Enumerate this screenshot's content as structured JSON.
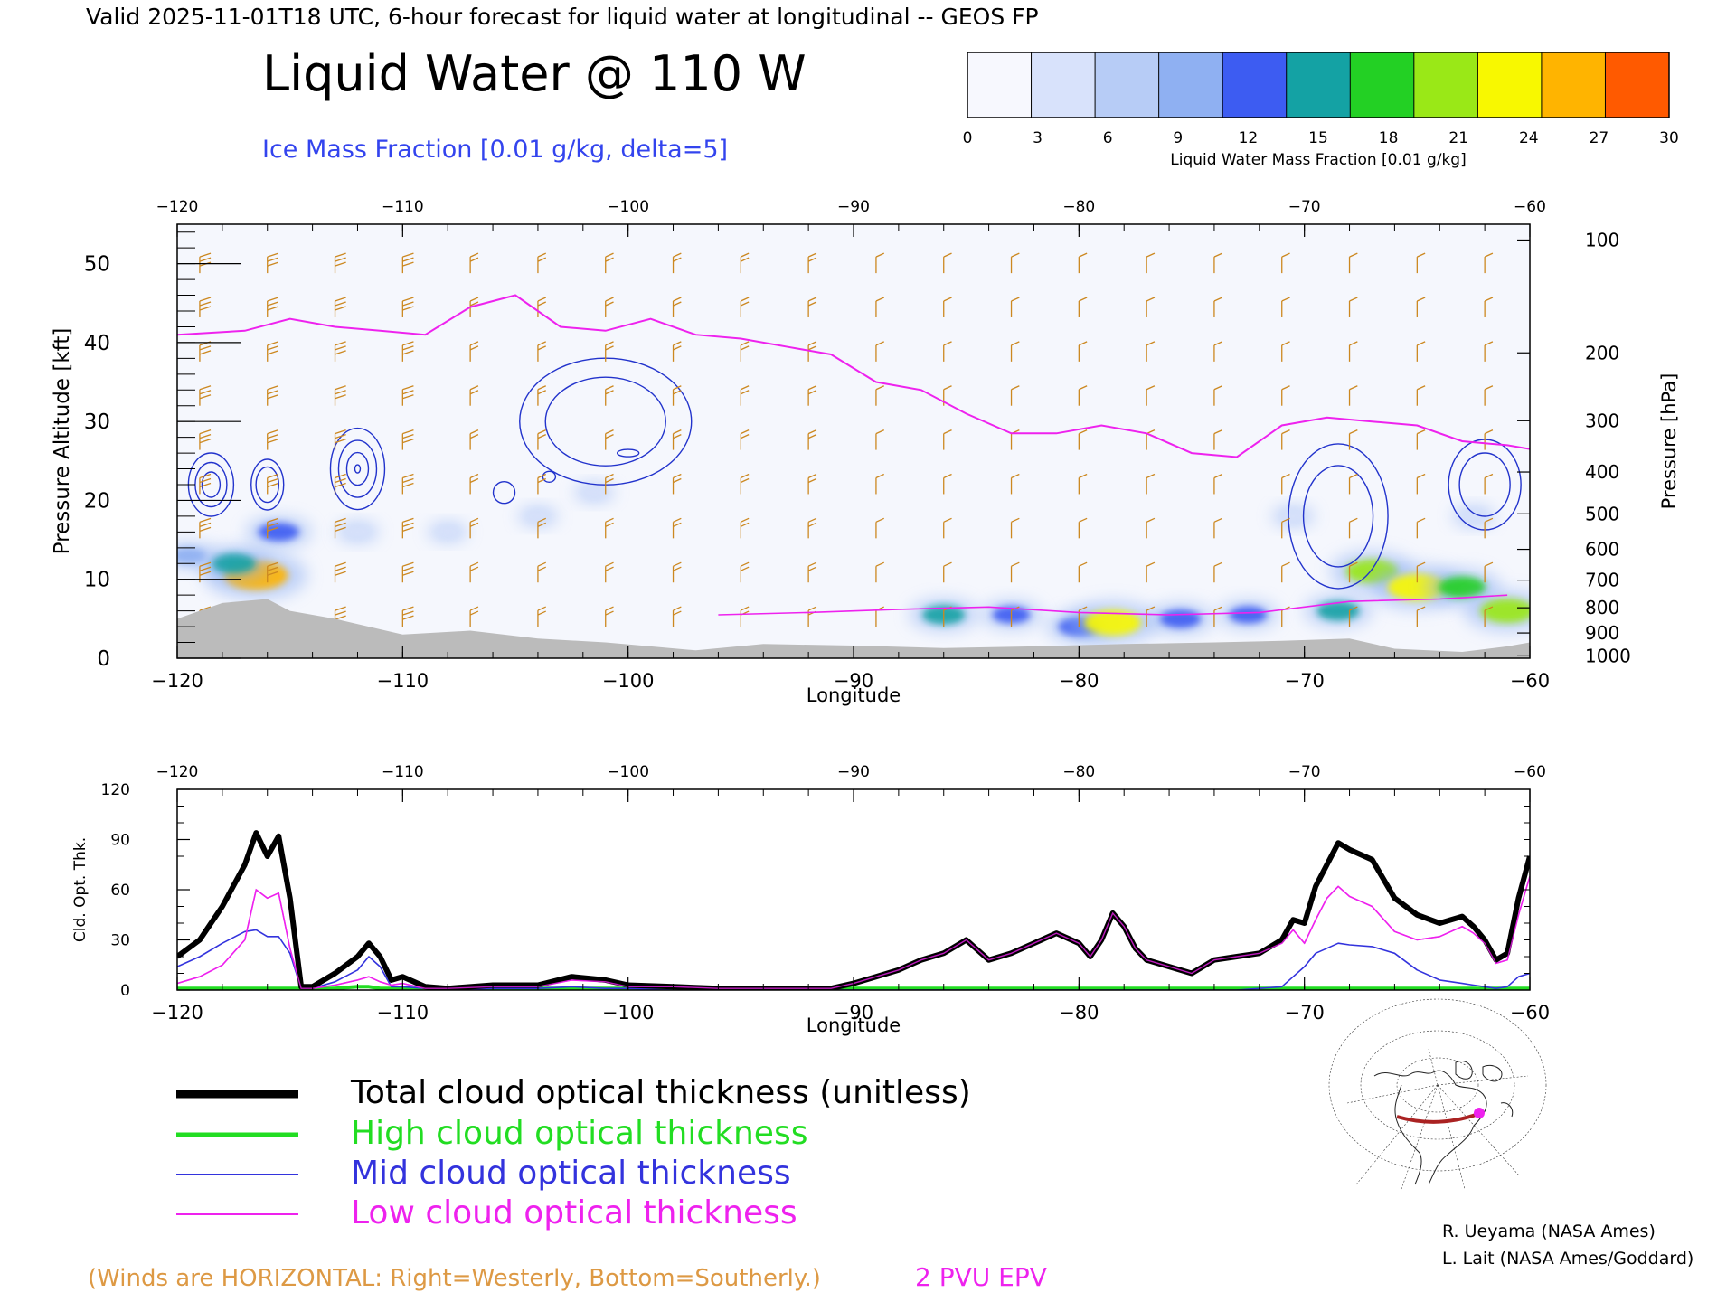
{
  "header": {
    "valid_line": "Valid 2025-11-01T18 UTC, 6-hour forecast for liquid water at longitudinal -- GEOS FP",
    "title": "Liquid Water @ 110 W",
    "ice_label": "Ice Mass Fraction [0.01 g/kg, delta=5]"
  },
  "colorbar": {
    "label": "Liquid Water Mass Fraction [0.01 g/kg]",
    "ticks": [
      "0",
      "3",
      "6",
      "9",
      "12",
      "15",
      "18",
      "21",
      "24",
      "27",
      "30"
    ],
    "colors": [
      "#f7f8fe",
      "#d8e2fb",
      "#b7ccf6",
      "#8fb0f2",
      "#3d5cf2",
      "#14a2a4",
      "#23d024",
      "#9ae817",
      "#f8f800",
      "#ffb400",
      "#ff5a00"
    ]
  },
  "footer": {
    "winds_note": "(Winds are HORIZONTAL: Right=Westerly, Bottom=Southerly.)",
    "epv_label": "2 PVU EPV",
    "credit_1": "R. Ueyama (NASA Ames)",
    "credit_2": "L. Lait (NASA Ames/Goddard)"
  },
  "legend": [
    {
      "label": "Total cloud optical thickness (unitless)",
      "color": "#000000"
    },
    {
      "label": "High cloud optical thickness",
      "color": "#22dd22"
    },
    {
      "label": "Mid cloud optical thickness",
      "color": "#3333dd"
    },
    {
      "label": "Low cloud optical thickness",
      "color": "#ee22ee"
    }
  ],
  "colors": {
    "wind_barb": "#cc8820",
    "ice_contour": "#2233cc",
    "epv": "#ee22ee",
    "terrain": "#bbbbbb"
  },
  "chart_data": [
    {
      "type": "heatmap",
      "xlabel": "Longitude",
      "ylabel": "Pressure Altitude [kft]",
      "y2label": "Pressure [hPa]",
      "xlim": [
        -120,
        -60
      ],
      "ylim": [
        0,
        55
      ],
      "xticks": [
        "−120",
        "−110",
        "−100",
        "−90",
        "−80",
        "−70",
        "−60"
      ],
      "yticks": [
        "0",
        "10",
        "20",
        "30",
        "40",
        "50"
      ],
      "pressure_ticks": [
        {
          "label": "100",
          "kft": 53.0
        },
        {
          "label": "200",
          "kft": 38.7
        },
        {
          "label": "300",
          "kft": 30.1
        },
        {
          "label": "400",
          "kft": 23.6
        },
        {
          "label": "500",
          "kft": 18.3
        },
        {
          "label": "600",
          "kft": 13.8
        },
        {
          "label": "700",
          "kft": 9.9
        },
        {
          "label": "800",
          "kft": 6.4
        },
        {
          "label": "900",
          "kft": 3.2
        },
        {
          "label": "1000",
          "kft": 0.3
        }
      ],
      "liquid_water_blobs": [
        {
          "lon": -116.5,
          "kft": 10.5,
          "value": 28
        },
        {
          "lon": -117.5,
          "kft": 12,
          "value": 16
        },
        {
          "lon": -119.5,
          "kft": 13,
          "value": 10
        },
        {
          "lon": -115.5,
          "kft": 16,
          "value": 14
        },
        {
          "lon": -112,
          "kft": 16,
          "value": 5
        },
        {
          "lon": -108,
          "kft": 16,
          "value": 4
        },
        {
          "lon": -104,
          "kft": 18,
          "value": 4
        },
        {
          "lon": -101.5,
          "kft": 21,
          "value": 4
        },
        {
          "lon": -86,
          "kft": 5.5,
          "value": 15
        },
        {
          "lon": -83,
          "kft": 5.5,
          "value": 12
        },
        {
          "lon": -80,
          "kft": 4,
          "value": 14
        },
        {
          "lon": -78.5,
          "kft": 4.5,
          "value": 24
        },
        {
          "lon": -75.5,
          "kft": 5,
          "value": 14
        },
        {
          "lon": -72.5,
          "kft": 5.5,
          "value": 12
        },
        {
          "lon": -67,
          "kft": 11,
          "value": 21
        },
        {
          "lon": -65,
          "kft": 9,
          "value": 25
        },
        {
          "lon": -63,
          "kft": 9,
          "value": 18
        },
        {
          "lon": -61,
          "kft": 6,
          "value": 22
        },
        {
          "lon": -68.5,
          "kft": 6,
          "value": 15
        },
        {
          "lon": -70.5,
          "kft": 18,
          "value": 5
        },
        {
          "lon": -62.5,
          "kft": 18,
          "value": 5
        }
      ],
      "epv_2pvu": [
        [
          -120,
          41
        ],
        [
          -117,
          41.5
        ],
        [
          -115,
          43
        ],
        [
          -113,
          42
        ],
        [
          -111,
          41.5
        ],
        [
          -109,
          41
        ],
        [
          -107,
          44.5
        ],
        [
          -105,
          46
        ],
        [
          -103,
          42
        ],
        [
          -101,
          41.5
        ],
        [
          -99,
          43
        ],
        [
          -97,
          41
        ],
        [
          -95,
          40.5
        ],
        [
          -93,
          39.5
        ],
        [
          -91,
          38.5
        ],
        [
          -89,
          35
        ],
        [
          -87,
          34
        ],
        [
          -85,
          31
        ],
        [
          -83,
          28.5
        ],
        [
          -81,
          28.5
        ],
        [
          -79,
          29.5
        ],
        [
          -77,
          28.5
        ],
        [
          -75,
          26
        ],
        [
          -73,
          25.5
        ],
        [
          -71,
          29.5
        ],
        [
          -69,
          30.5
        ],
        [
          -67,
          30
        ],
        [
          -65,
          29.5
        ],
        [
          -63,
          27.5
        ],
        [
          -61,
          27
        ],
        [
          -60,
          26.5
        ]
      ],
      "epv_low": [
        [
          -96,
          5.5
        ],
        [
          -92,
          5.8
        ],
        [
          -88,
          6.2
        ],
        [
          -84,
          6.5
        ],
        [
          -80,
          5.8
        ],
        [
          -76,
          5.5
        ],
        [
          -72,
          5.8
        ],
        [
          -68,
          7.2
        ],
        [
          -64,
          7.5
        ],
        [
          -61,
          8
        ]
      ],
      "terrain_kft": [
        [
          -120,
          5
        ],
        [
          -119,
          6
        ],
        [
          -118,
          7
        ],
        [
          -116,
          7.5
        ],
        [
          -115,
          6
        ],
        [
          -113,
          5
        ],
        [
          -110,
          3
        ],
        [
          -107,
          3.5
        ],
        [
          -104,
          2.5
        ],
        [
          -101,
          2
        ],
        [
          -99,
          1.5
        ],
        [
          -97,
          1
        ],
        [
          -94,
          1.8
        ],
        [
          -90,
          1.6
        ],
        [
          -86,
          1.3
        ],
        [
          -82,
          1.5
        ],
        [
          -78,
          1.8
        ],
        [
          -74,
          2
        ],
        [
          -71,
          2.2
        ],
        [
          -68,
          2.5
        ],
        [
          -66,
          1.2
        ],
        [
          -63,
          0.8
        ],
        [
          -61,
          1.5
        ],
        [
          -60,
          2
        ]
      ]
    },
    {
      "type": "line",
      "xlabel": "Longitude",
      "ylabel": "Cld. Opt. Thk.",
      "xlim": [
        -120,
        -60
      ],
      "ylim": [
        0,
        120
      ],
      "xticks": [
        "−120",
        "−110",
        "−100",
        "−90",
        "−80",
        "−70",
        "−60"
      ],
      "yticks": [
        "0",
        "30",
        "60",
        "90",
        "120"
      ],
      "x": [
        -120,
        -119,
        -118,
        -117,
        -116.5,
        -116,
        -115.5,
        -115,
        -114.5,
        -114,
        -113,
        -112,
        -111.5,
        -111,
        -110.5,
        -110,
        -109,
        -108,
        -106,
        -104,
        -102.5,
        -101,
        -100,
        -98,
        -96,
        -94,
        -92,
        -91,
        -90,
        -89,
        -88,
        -87,
        -86,
        -85,
        -84,
        -83,
        -82,
        -81,
        -80,
        -79.5,
        -79,
        -78.5,
        -78,
        -77.5,
        -77,
        -76,
        -75,
        -74,
        -73,
        -72,
        -71,
        -70.5,
        -70,
        -69.5,
        -69,
        -68.5,
        -68,
        -67,
        -66,
        -65,
        -64,
        -63,
        -62.5,
        -62,
        -61.5,
        -61,
        -60.5,
        -60
      ],
      "series": [
        {
          "name": "Total cloud optical thickness (unitless)",
          "values": [
            20,
            30,
            50,
            75,
            94,
            80,
            92,
            55,
            2,
            2,
            10,
            20,
            28,
            20,
            6,
            8,
            2,
            1,
            3,
            3,
            8,
            6,
            3,
            2,
            1,
            1,
            1,
            1,
            4,
            8,
            12,
            18,
            22,
            30,
            18,
            22,
            28,
            34,
            28,
            20,
            30,
            46,
            38,
            25,
            18,
            14,
            10,
            18,
            20,
            22,
            30,
            42,
            40,
            62,
            75,
            88,
            84,
            78,
            55,
            45,
            40,
            44,
            38,
            30,
            18,
            22,
            55,
            80
          ]
        },
        {
          "name": "High cloud optical thickness",
          "values": [
            1,
            1,
            1,
            1,
            1,
            1,
            1,
            1,
            1,
            1,
            1,
            2,
            2,
            1,
            1,
            1,
            1,
            1,
            1,
            1,
            1,
            1,
            1,
            1,
            1,
            1,
            1,
            1,
            1,
            1,
            1,
            1,
            1,
            1,
            1,
            1,
            1,
            1,
            1,
            1,
            1,
            1,
            1,
            1,
            1,
            1,
            1,
            1,
            1,
            1,
            1,
            1,
            1,
            1,
            1,
            1,
            1,
            1,
            1,
            1,
            1,
            1,
            1,
            1,
            1,
            1,
            1,
            1
          ]
        },
        {
          "name": "Mid cloud optical thickness",
          "values": [
            14,
            20,
            28,
            35,
            36,
            32,
            32,
            22,
            1,
            1,
            5,
            12,
            20,
            14,
            2,
            2,
            1,
            0,
            1,
            1,
            2,
            1,
            1,
            0,
            0,
            0,
            0,
            0,
            0,
            0,
            0,
            0,
            0,
            0,
            0,
            0,
            0,
            0,
            0,
            0,
            0,
            0,
            0,
            0,
            0,
            0,
            0,
            0,
            0,
            1,
            2,
            8,
            14,
            22,
            25,
            28,
            27,
            26,
            22,
            12,
            6,
            4,
            3,
            2,
            1,
            2,
            8,
            10
          ]
        },
        {
          "name": "Low cloud optical thickness",
          "values": [
            4,
            8,
            15,
            30,
            60,
            55,
            58,
            25,
            1,
            1,
            3,
            6,
            8,
            5,
            3,
            4,
            1,
            1,
            2,
            2,
            6,
            5,
            2,
            2,
            1,
            1,
            1,
            1,
            4,
            8,
            12,
            18,
            22,
            30,
            18,
            22,
            28,
            34,
            28,
            20,
            30,
            46,
            38,
            25,
            18,
            14,
            10,
            18,
            20,
            22,
            28,
            36,
            28,
            42,
            55,
            62,
            56,
            50,
            35,
            30,
            32,
            38,
            34,
            28,
            16,
            18,
            45,
            68
          ]
        }
      ]
    }
  ]
}
